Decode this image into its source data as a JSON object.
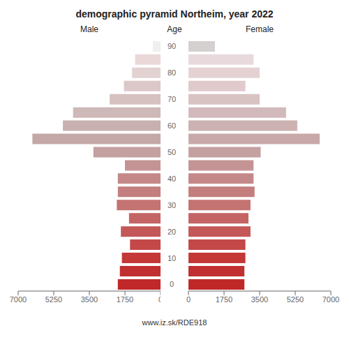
{
  "chart_data": {
    "type": "bar",
    "orientation": "horizontal",
    "title": "demographic pyramid Northeim, year 2022",
    "ylabel": "Age",
    "annotations": [
      "www.iz.sk/RDE918"
    ],
    "categories": [
      "0",
      null,
      "10",
      null,
      "20",
      null,
      "30",
      null,
      "40",
      null,
      "50",
      null,
      "60",
      null,
      "70",
      null,
      "80",
      null,
      "90"
    ],
    "xlim": [
      0,
      7000
    ],
    "xticks": [
      0,
      1750,
      3500,
      5250,
      7000
    ],
    "series": [
      {
        "name": "Male",
        "values": [
          2100,
          2000,
          1900,
          1500,
          1950,
          1550,
          2150,
          2100,
          2100,
          1750,
          3300,
          6300,
          4800,
          4300,
          2500,
          1800,
          1400,
          1250,
          380
        ],
        "colors": [
          "#c0282a",
          "#c03030",
          "#c43838",
          "#c44848",
          "#c45858",
          "#c46464",
          "#c47272",
          "#c47e7e",
          "#c48888",
          "#c49494",
          "#c4a0a0",
          "#c4a8a8",
          "#c8b0b0",
          "#ceb8b8",
          "#d6c0c0",
          "#dcc8c8",
          "#e2d2d2",
          "#ead8d8",
          "#f0eeee"
        ]
      },
      {
        "name": "Female",
        "values": [
          2750,
          2750,
          2800,
          2800,
          3050,
          2950,
          3050,
          3250,
          3200,
          3200,
          3550,
          6450,
          5350,
          4800,
          3500,
          2800,
          3500,
          3200,
          1300
        ],
        "colors": [
          "#c02828",
          "#c03030",
          "#c43838",
          "#c44848",
          "#c45858",
          "#c46464",
          "#c47272",
          "#c47e7e",
          "#c48888",
          "#c49494",
          "#c4a0a0",
          "#c8a8a8",
          "#ccb2b2",
          "#d2babc",
          "#d8c2c2",
          "#e0cacc",
          "#e4d2d2",
          "#e8dadc",
          "#d4d0d0"
        ]
      }
    ]
  }
}
